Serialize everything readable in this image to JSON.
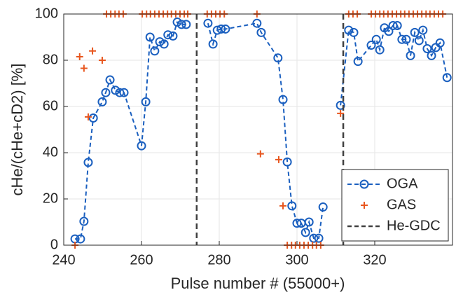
{
  "chart_data": {
    "type": "scatter",
    "x_label": "Pulse number # (55000+)",
    "y_label": "cHe/(cHe+cD2) [%]",
    "xlim": [
      240,
      340
    ],
    "xticks": [
      240,
      260,
      280,
      300,
      320
    ],
    "ylim": [
      0,
      100
    ],
    "yticks": [
      0,
      20,
      40,
      60,
      80,
      100
    ],
    "grid": true,
    "legend": "lower right",
    "series": [
      {
        "name": "OGA",
        "color": "#1a5fbf",
        "marker": "o",
        "line": "dashed",
        "x": [
          242.9,
          244.3,
          245.2,
          246.3,
          247.6,
          249.9,
          250.8,
          251.9,
          253.3,
          254.4,
          255.5,
          260.0,
          261.1,
          262.2,
          263.4,
          264.7,
          265.8,
          266.8,
          268.1,
          269.2,
          270.3,
          271.5,
          null,
          277.1,
          278.4,
          279.5,
          280.5,
          281.6,
          289.7,
          290.8,
          295.1,
          296.4,
          297.5,
          298.7,
          300.0,
          301.1,
          302.2,
          303.1,
          304.3,
          305.6,
          306.7,
          null,
          311.2,
          313.3,
          314.6,
          315.7,
          319.1,
          320.4,
          321.3,
          322.5,
          323.6,
          324.7,
          325.8,
          327.0,
          328.1,
          329.2,
          330.3,
          331.4,
          332.4,
          333.5,
          334.6,
          335.7,
          336.8,
          338.6
        ],
        "values": [
          2.7,
          2.7,
          10.3,
          35.8,
          55,
          62,
          66,
          71.5,
          67,
          66,
          66,
          43,
          62,
          90,
          84,
          88,
          87,
          91,
          90.5,
          96.5,
          95.5,
          95.5,
          null,
          96,
          87,
          93,
          93.5,
          93.5,
          96,
          92,
          81,
          63,
          36,
          17,
          9.5,
          9.5,
          5.5,
          10,
          3,
          3,
          16.5,
          null,
          60.5,
          93,
          92,
          79.5,
          86.5,
          89,
          84.5,
          94,
          92.5,
          95,
          95,
          89,
          89,
          82,
          92,
          88.5,
          93,
          85,
          82,
          85.5,
          87.5,
          72.5
        ]
      },
      {
        "name": "GAS",
        "color": "#e8561e",
        "marker": "+",
        "x": [
          251.0,
          252.1,
          253.2,
          254.2,
          255.3,
          260.2,
          261.3,
          262.3,
          263.4,
          264.5,
          265.6,
          266.7,
          267.7,
          268.8,
          269.9,
          271.0,
          271.9,
          276.9,
          278.0,
          279.1,
          280.2,
          281.3,
          289.7,
          313.3,
          314.4,
          315.5,
          319.1,
          320.2,
          321.3,
          322.3,
          323.4,
          324.5,
          325.6,
          326.7,
          327.7,
          328.8,
          329.9,
          331.0,
          332.1,
          333.2,
          334.2,
          335.3,
          336.4,
          337.5,
          242.9,
          297.5,
          298.6,
          299.6,
          300.7,
          301.8,
          302.9,
          304.0,
          305.0,
          306.1,
          244.1,
          245.2,
          246.3,
          247.4,
          249.9,
          290.6,
          295.3,
          296.4,
          311.2
        ],
        "values": [
          100,
          100,
          100,
          100,
          100,
          100,
          100,
          100,
          100,
          100,
          100,
          100,
          100,
          100,
          100,
          100,
          100,
          100,
          100,
          100,
          100,
          100,
          100,
          100,
          100,
          100,
          100,
          100,
          100,
          100,
          100,
          100,
          100,
          100,
          100,
          100,
          100,
          100,
          100,
          100,
          100,
          100,
          100,
          100,
          0,
          0,
          0,
          0,
          0,
          0,
          0,
          0,
          0,
          0,
          81.5,
          76.5,
          55.5,
          84,
          80,
          39.5,
          37,
          17,
          57
        ]
      },
      {
        "name": "He-GDC",
        "color": "#404040",
        "marker": "vline",
        "line": "dashed",
        "x": [
          274.2,
          311.9
        ]
      }
    ]
  }
}
